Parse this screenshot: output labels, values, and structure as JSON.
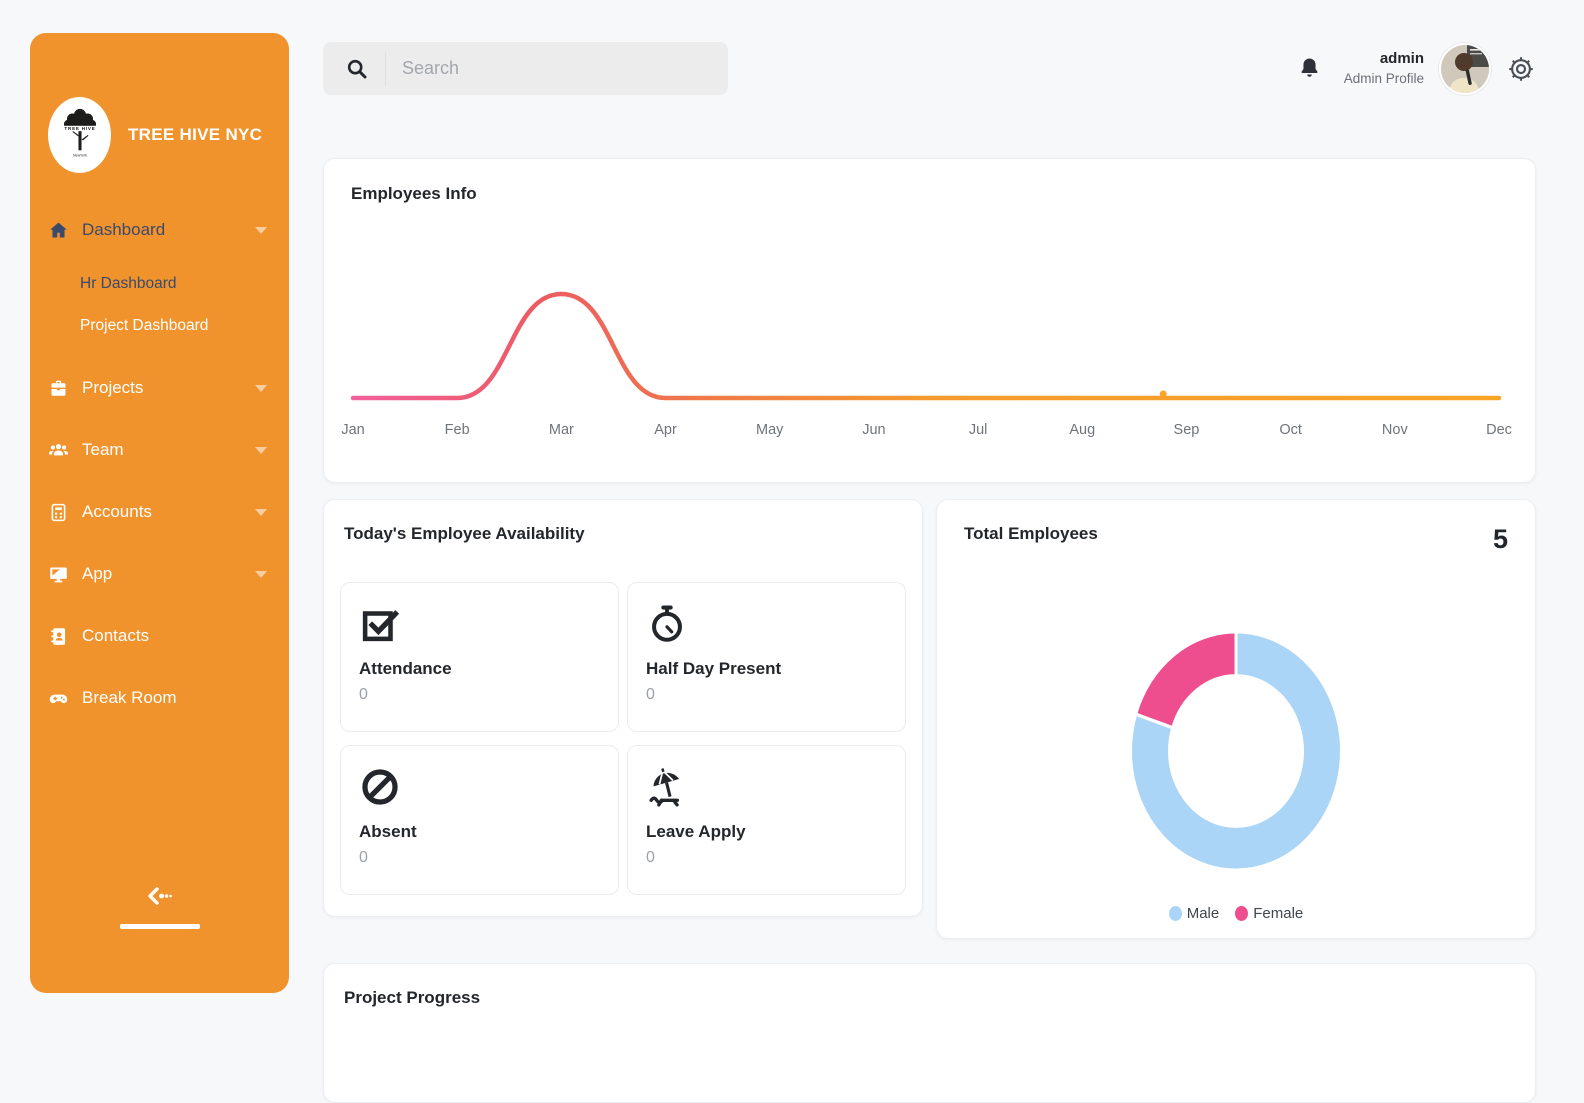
{
  "brand": {
    "name": "TREE HIVE NYC",
    "logo_icon": "tree-logo-icon"
  },
  "colors": {
    "sidebar": "#F0932D",
    "sidebar_active_text": "#3B4A6B",
    "page_bg": "#F7F8FA",
    "title_text": "#23262B",
    "muted_text": "#9CA1A7",
    "donut_male": "#ABD5F7",
    "donut_female": "#EE4E8D",
    "line_orange": "#F9A427"
  },
  "sidebar": {
    "items": [
      {
        "label": "Dashboard",
        "icon": "home-icon",
        "expandable": true,
        "active": true,
        "children": [
          {
            "label": "Hr Dashboard",
            "active": true
          },
          {
            "label": "Project Dashboard",
            "active": false
          }
        ]
      },
      {
        "label": "Projects",
        "icon": "briefcase-icon",
        "expandable": true
      },
      {
        "label": "Team",
        "icon": "users-icon",
        "expandable": true
      },
      {
        "label": "Accounts",
        "icon": "calculator-icon",
        "expandable": true
      },
      {
        "label": "App",
        "icon": "app-window-icon",
        "expandable": true
      },
      {
        "label": "Contacts",
        "icon": "address-book-icon",
        "expandable": false
      },
      {
        "label": "Break Room",
        "icon": "gamepad-icon",
        "expandable": false
      }
    ],
    "collapse_icon": "collapse-left-icon"
  },
  "header": {
    "search": {
      "placeholder": "Search",
      "icon": "search-icon"
    },
    "bell_icon": "bell-icon",
    "user": {
      "name": "admin",
      "role": "Admin Profile"
    },
    "settings_icon": "gear-icon"
  },
  "cards": {
    "employees_info": {
      "title": "Employees Info"
    },
    "availability": {
      "title": "Today's Employee Availability",
      "tiles": [
        {
          "label": "Attendance",
          "value": "0",
          "icon": "check-square-icon"
        },
        {
          "label": "Half Day Present",
          "value": "0",
          "icon": "stopwatch-icon"
        },
        {
          "label": "Absent",
          "value": "0",
          "icon": "ban-icon"
        },
        {
          "label": "Leave Apply",
          "value": "0",
          "icon": "beach-chair-icon"
        }
      ]
    },
    "total_employees": {
      "title": "Total Employees",
      "total": "5"
    },
    "project_progress": {
      "title": "Project Progress"
    }
  },
  "chart_data": [
    {
      "id": "employees-info",
      "type": "line",
      "title": "Employees Info",
      "x": [
        "Jan",
        "Feb",
        "Mar",
        "Apr",
        "May",
        "Jun",
        "Jul",
        "Aug",
        "Sep",
        "Oct",
        "Nov",
        "Dec"
      ],
      "series": [
        {
          "name": "Employees",
          "values": [
            0,
            0,
            65,
            0,
            0,
            0,
            0,
            0,
            0,
            0,
            0,
            0
          ]
        }
      ],
      "ylim": [
        0,
        100
      ],
      "grid": false,
      "curve": "smooth",
      "marker": {
        "x_fraction": 0.707,
        "color": "#F9A427"
      },
      "stroke_gradient": [
        {
          "offset": 0,
          "color": "#F2609D"
        },
        {
          "offset": 0.16,
          "color": "#EC5B62"
        },
        {
          "offset": 0.32,
          "color": "#F07C46"
        },
        {
          "offset": 0.5,
          "color": "#F59A2E"
        },
        {
          "offset": 1,
          "color": "#F9A427"
        }
      ],
      "label_color": "#6F7479"
    },
    {
      "id": "total-employees",
      "type": "donut",
      "title": "Total Employees",
      "labels": [
        "Male",
        "Female"
      ],
      "values": [
        4,
        1
      ],
      "total": 5,
      "colors": [
        "#ABD5F7",
        "#EE4E8D"
      ],
      "legend_position": "bottom"
    }
  ]
}
